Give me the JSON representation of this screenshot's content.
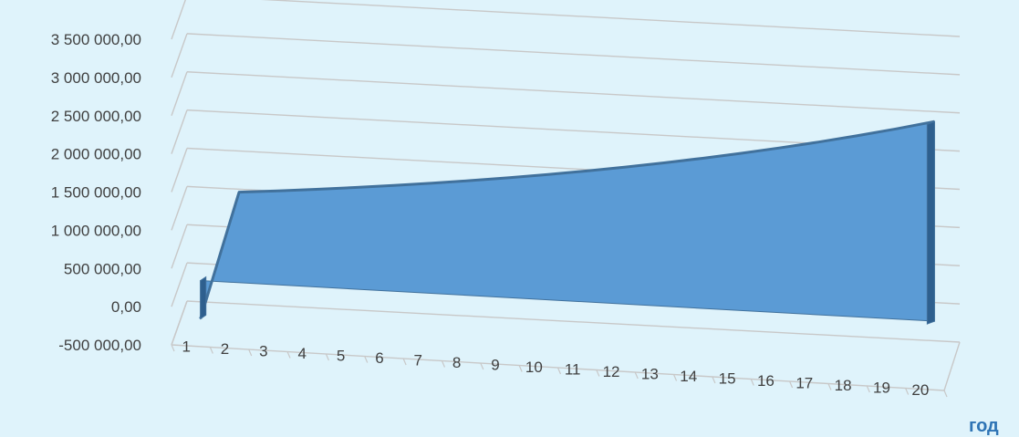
{
  "chart_data": {
    "type": "area",
    "style": "3d-area",
    "categories": [
      "1",
      "2",
      "3",
      "4",
      "5",
      "6",
      "7",
      "8",
      "9",
      "10",
      "11",
      "12",
      "13",
      "14",
      "15",
      "16",
      "17",
      "18",
      "19",
      "20"
    ],
    "series": [
      {
        "values": [
          -500000,
          1185000,
          1230000,
          1278000,
          1330000,
          1385000,
          1443000,
          1505000,
          1571000,
          1641000,
          1715000,
          1794000,
          1877000,
          1965000,
          2058000,
          2157000,
          2261000,
          2372000,
          2489000,
          2613000
        ],
        "color": "#5b9bd5"
      }
    ],
    "yticks": [
      "-500 000,00",
      "0,00",
      "500 000,00",
      "1 000 000,00",
      "1 500 000,00",
      "2 000 000,00",
      "2 500 000,00",
      "3 000 000,00",
      "3 500 000,00"
    ],
    "ylim": [
      -500000,
      3500000
    ],
    "xlabel": "год",
    "ylabel": "",
    "title": "",
    "grid": true,
    "legend": "none",
    "colors": {
      "background": "#dff3fb",
      "area": "#5b9bd5",
      "area_edge": "#41719c",
      "area_dark": "#2e5f8e",
      "grid": "#c8c8c8",
      "accent_text": "#2e74b5"
    }
  }
}
